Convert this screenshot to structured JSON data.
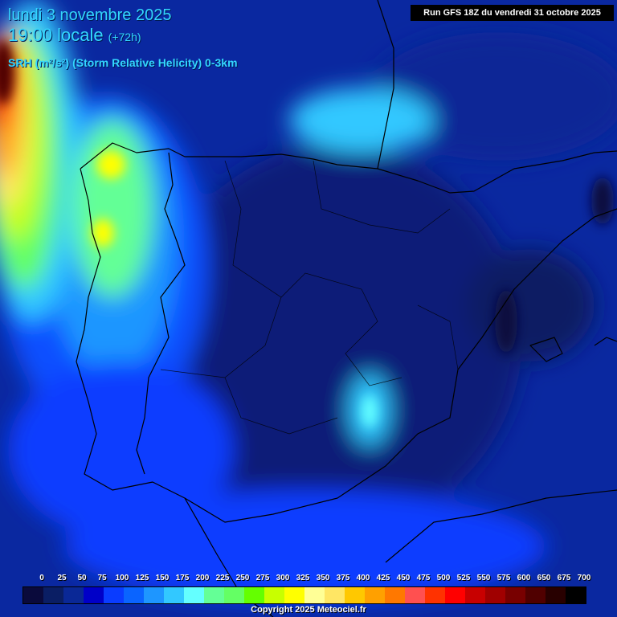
{
  "header": {
    "date_line": "lundi 3 novembre 2025",
    "time_line": "19:00 locale",
    "lead_time": "(+72h)",
    "parameter": "SRH (m²/s²) (Storm Relative Helicity) 0-3km",
    "run_info": "Run GFS 18Z du vendredi 31 octobre 2025"
  },
  "legend": {
    "ticks": [
      "0",
      "25",
      "50",
      "75",
      "100",
      "125",
      "150",
      "175",
      "200",
      "225",
      "250",
      "275",
      "300",
      "325",
      "350",
      "375",
      "400",
      "425",
      "450",
      "475",
      "500",
      "525",
      "550",
      "575",
      "600",
      "650",
      "675",
      "700"
    ],
    "colors": [
      "#0a0a3c",
      "#0a1e64",
      "#0a2896",
      "#0000c8",
      "#0a3cff",
      "#0a64ff",
      "#1e96ff",
      "#32c8ff",
      "#64ffff",
      "#64ff96",
      "#64ff64",
      "#64ff00",
      "#c8ff00",
      "#ffff00",
      "#ffff96",
      "#ffe664",
      "#ffc800",
      "#ffa000",
      "#ff7800",
      "#ff5050",
      "#ff3200",
      "#ff0000",
      "#c80000",
      "#a00000",
      "#780000",
      "#500000",
      "#280000",
      "#000000"
    ]
  },
  "footer": {
    "copyright": "Copyright 2025 Meteociel.fr"
  }
}
